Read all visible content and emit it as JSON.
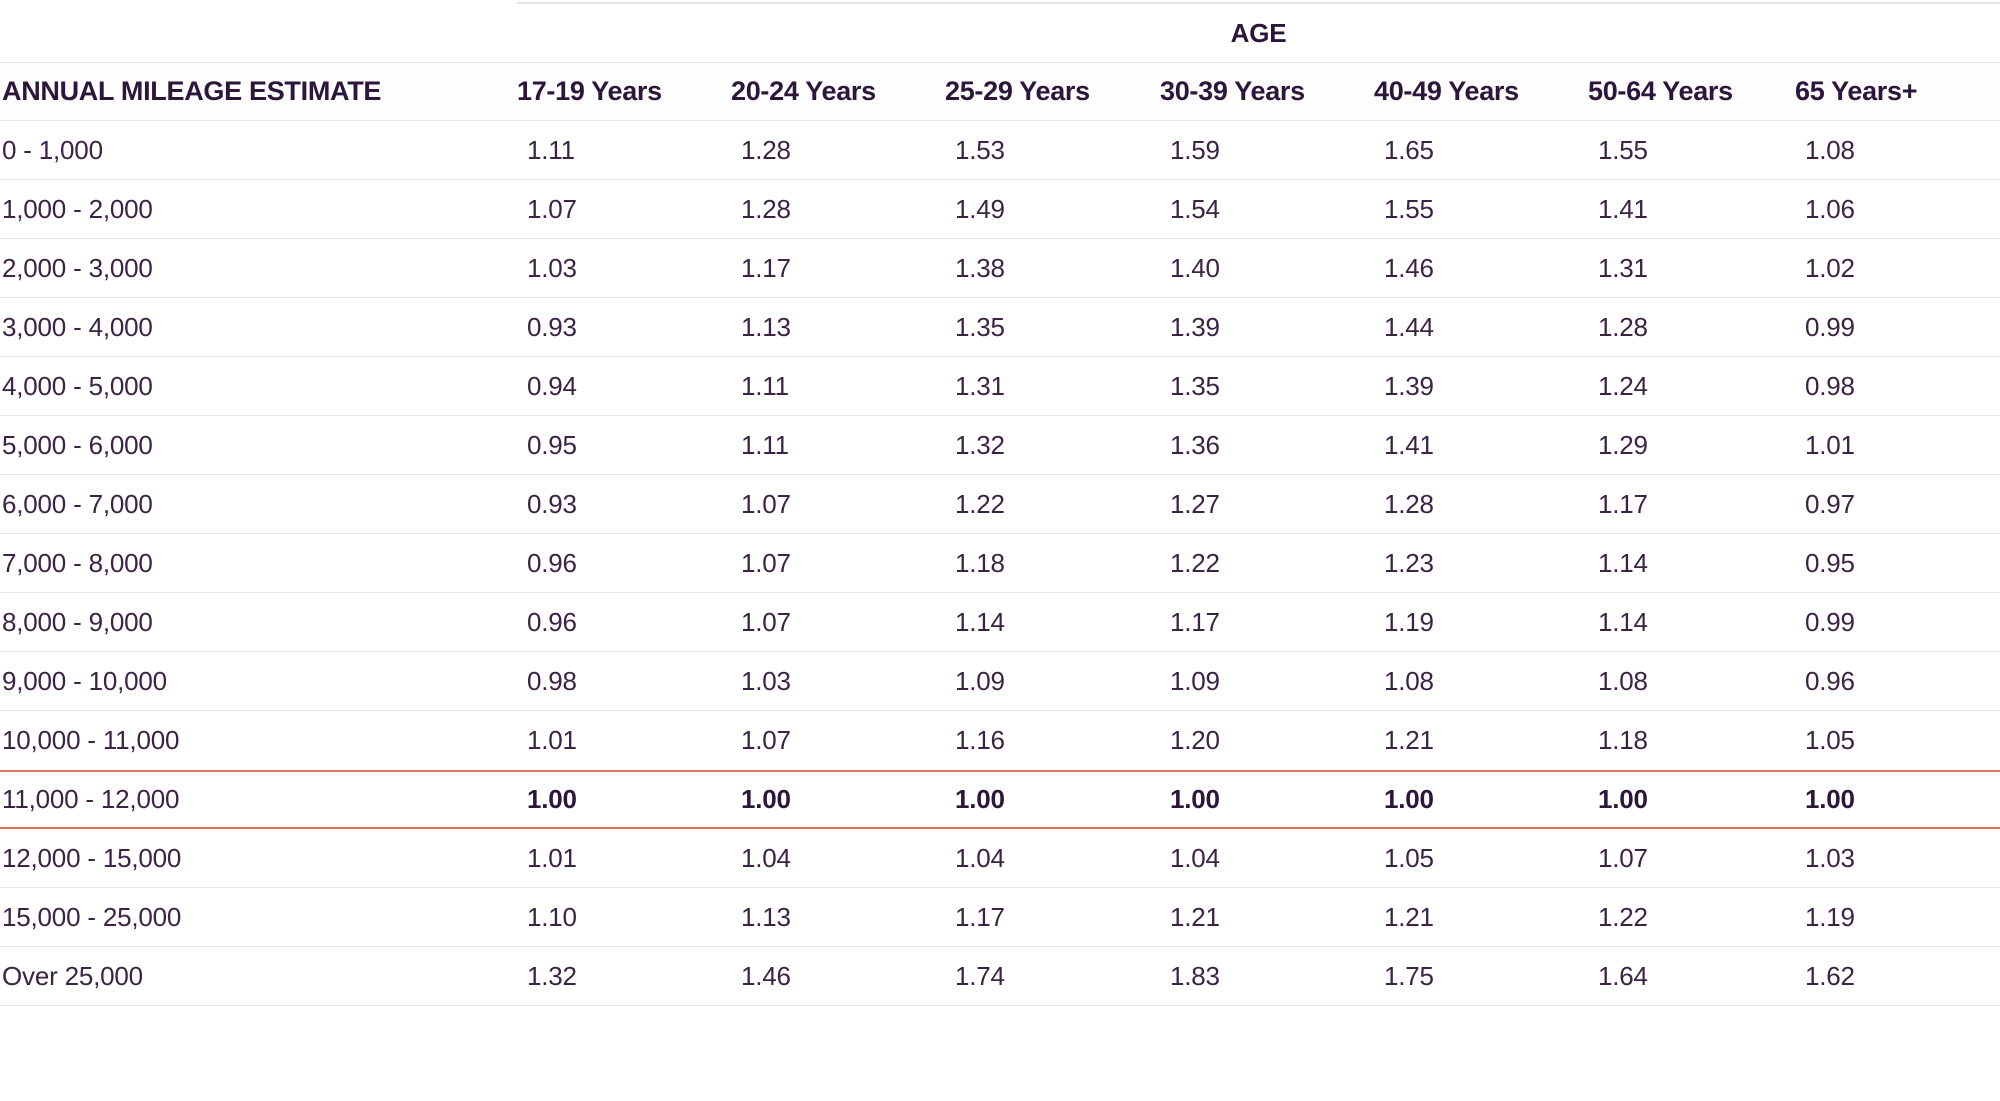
{
  "colors": {
    "text_header": "#2c163a",
    "text_body": "#3b2344",
    "divider": "#e8e8e8",
    "divider_top": "#e3e3e3",
    "highlight_border": "#e1715b"
  },
  "table": {
    "group_header": "AGE",
    "columns": [
      "ANNUAL MILEAGE ESTIMATE",
      "17-19 Years",
      "20-24 Years",
      "25-29 Years",
      "30-39 Years",
      "40-49 Years",
      "50-64 Years",
      "65 Years+"
    ],
    "rows": [
      {
        "label": "0 - 1,000",
        "values": [
          "1.11",
          "1.28",
          "1.53",
          "1.59",
          "1.65",
          "1.55",
          "1.08"
        ],
        "highlight": false
      },
      {
        "label": "1,000 - 2,000",
        "values": [
          "1.07",
          "1.28",
          "1.49",
          "1.54",
          "1.55",
          "1.41",
          "1.06"
        ],
        "highlight": false
      },
      {
        "label": "2,000 - 3,000",
        "values": [
          "1.03",
          "1.17",
          "1.38",
          "1.40",
          "1.46",
          "1.31",
          "1.02"
        ],
        "highlight": false
      },
      {
        "label": "3,000 - 4,000",
        "values": [
          "0.93",
          "1.13",
          "1.35",
          "1.39",
          "1.44",
          "1.28",
          "0.99"
        ],
        "highlight": false
      },
      {
        "label": "4,000 - 5,000",
        "values": [
          "0.94",
          "1.11",
          "1.31",
          "1.35",
          "1.39",
          "1.24",
          "0.98"
        ],
        "highlight": false
      },
      {
        "label": "5,000 - 6,000",
        "values": [
          "0.95",
          "1.11",
          "1.32",
          "1.36",
          "1.41",
          "1.29",
          "1.01"
        ],
        "highlight": false
      },
      {
        "label": "6,000 - 7,000",
        "values": [
          "0.93",
          "1.07",
          "1.22",
          "1.27",
          "1.28",
          "1.17",
          "0.97"
        ],
        "highlight": false
      },
      {
        "label": "7,000 - 8,000",
        "values": [
          "0.96",
          "1.07",
          "1.18",
          "1.22",
          "1.23",
          "1.14",
          "0.95"
        ],
        "highlight": false
      },
      {
        "label": "8,000 - 9,000",
        "values": [
          "0.96",
          "1.07",
          "1.14",
          "1.17",
          "1.19",
          "1.14",
          "0.99"
        ],
        "highlight": false
      },
      {
        "label": "9,000 - 10,000",
        "values": [
          "0.98",
          "1.03",
          "1.09",
          "1.09",
          "1.08",
          "1.08",
          "0.96"
        ],
        "highlight": false
      },
      {
        "label": "10,000 - 11,000",
        "values": [
          "1.01",
          "1.07",
          "1.16",
          "1.20",
          "1.21",
          "1.18",
          "1.05"
        ],
        "highlight": false
      },
      {
        "label": "11,000 - 12,000",
        "values": [
          "1.00",
          "1.00",
          "1.00",
          "1.00",
          "1.00",
          "1.00",
          "1.00"
        ],
        "highlight": true
      },
      {
        "label": "12,000 - 15,000",
        "values": [
          "1.01",
          "1.04",
          "1.04",
          "1.04",
          "1.05",
          "1.07",
          "1.03"
        ],
        "highlight": false
      },
      {
        "label": "15,000 - 25,000",
        "values": [
          "1.10",
          "1.13",
          "1.17",
          "1.21",
          "1.21",
          "1.22",
          "1.19"
        ],
        "highlight": false
      },
      {
        "label": "Over 25,000",
        "values": [
          "1.32",
          "1.46",
          "1.74",
          "1.83",
          "1.75",
          "1.64",
          "1.62"
        ],
        "highlight": false
      }
    ]
  },
  "chart_data": {
    "type": "table",
    "title": "AGE",
    "row_header": "ANNUAL MILEAGE ESTIMATE",
    "categories": [
      "0 - 1,000",
      "1,000 - 2,000",
      "2,000 - 3,000",
      "3,000 - 4,000",
      "4,000 - 5,000",
      "5,000 - 6,000",
      "6,000 - 7,000",
      "7,000 - 8,000",
      "8,000 - 9,000",
      "9,000 - 10,000",
      "10,000 - 11,000",
      "11,000 - 12,000",
      "12,000 - 15,000",
      "15,000 - 25,000",
      "Over 25,000"
    ],
    "series": [
      {
        "name": "17-19 Years",
        "values": [
          1.11,
          1.07,
          1.03,
          0.93,
          0.94,
          0.95,
          0.93,
          0.96,
          0.96,
          0.98,
          1.01,
          1.0,
          1.01,
          1.1,
          1.32
        ]
      },
      {
        "name": "20-24 Years",
        "values": [
          1.28,
          1.28,
          1.17,
          1.13,
          1.11,
          1.11,
          1.07,
          1.07,
          1.07,
          1.03,
          1.07,
          1.0,
          1.04,
          1.13,
          1.46
        ]
      },
      {
        "name": "25-29 Years",
        "values": [
          1.53,
          1.49,
          1.38,
          1.35,
          1.31,
          1.32,
          1.22,
          1.18,
          1.14,
          1.09,
          1.16,
          1.0,
          1.04,
          1.17,
          1.74
        ]
      },
      {
        "name": "30-39 Years",
        "values": [
          1.59,
          1.54,
          1.4,
          1.39,
          1.35,
          1.36,
          1.27,
          1.22,
          1.17,
          1.09,
          1.2,
          1.0,
          1.04,
          1.21,
          1.83
        ]
      },
      {
        "name": "40-49 Years",
        "values": [
          1.65,
          1.55,
          1.46,
          1.44,
          1.39,
          1.41,
          1.28,
          1.23,
          1.19,
          1.08,
          1.21,
          1.0,
          1.05,
          1.21,
          1.75
        ]
      },
      {
        "name": "50-64 Years",
        "values": [
          1.55,
          1.41,
          1.31,
          1.28,
          1.24,
          1.29,
          1.17,
          1.14,
          1.14,
          1.08,
          1.18,
          1.0,
          1.07,
          1.22,
          1.64
        ]
      },
      {
        "name": "65 Years+",
        "values": [
          1.08,
          1.06,
          1.02,
          0.99,
          0.98,
          1.01,
          0.97,
          0.95,
          0.99,
          0.96,
          1.05,
          1.0,
          1.03,
          1.19,
          1.62
        ]
      }
    ],
    "highlighted_row": "11,000 - 12,000",
    "layout": {
      "grid": "horizontal-dividers-only",
      "highlight_style": "orange top/bottom border, bold values"
    }
  }
}
